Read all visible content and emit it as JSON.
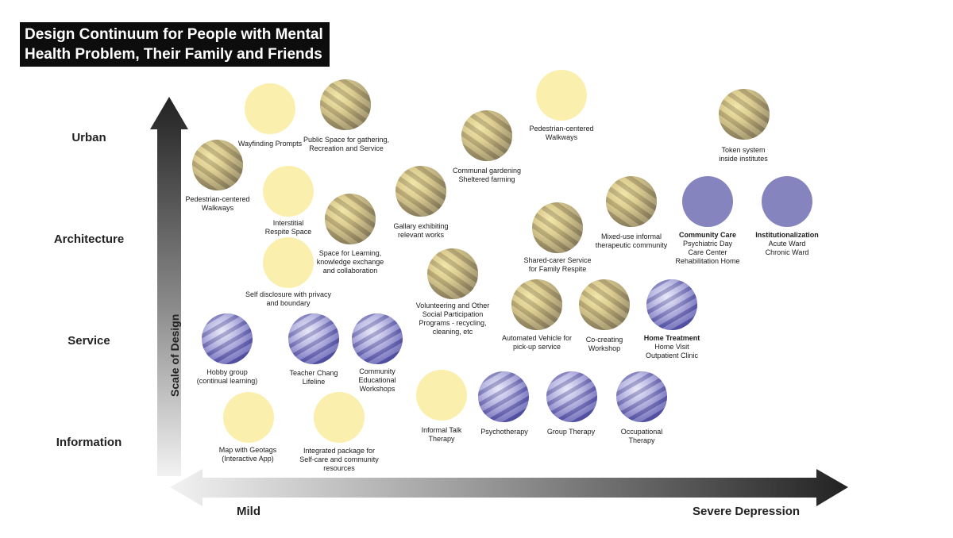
{
  "title": {
    "line1": "Design Continuum for People with Mental",
    "line2": "Health Problem, Their Family and Friends"
  },
  "y_axis": {
    "title": "Scale of Design",
    "levels": [
      "Urban",
      "Architecture",
      "Service",
      "Information"
    ]
  },
  "x_axis": {
    "start": "Mild",
    "end": "Severe Depression"
  },
  "colors": {
    "yellow": "#fbefad",
    "purple": "#8684bf",
    "axis_dark": "#2a2a2a"
  },
  "nodes": [
    {
      "id": "wayfinding",
      "style": "yellow",
      "lines": [
        "Wayfinding Prompts"
      ]
    },
    {
      "id": "public-space",
      "style": "photo-y",
      "lines": [
        "Public Space for gathering,",
        "Recreation and Service"
      ]
    },
    {
      "id": "ped-walk-left",
      "style": "photo-y",
      "lines": [
        "Pedestrian-centered",
        "Walkways"
      ]
    },
    {
      "id": "interstitial",
      "style": "yellow",
      "lines": [
        "Interstitial",
        "Respite Space"
      ]
    },
    {
      "id": "space-learning",
      "style": "photo-y",
      "lines": [
        "Space for Learning,",
        "knowledge exchange",
        "and collaboration"
      ]
    },
    {
      "id": "self-disclosure",
      "style": "yellow",
      "lines": [
        "Self disclosure with privacy",
        "and boundary"
      ]
    },
    {
      "id": "gallery",
      "style": "photo-y",
      "lines": [
        "Gallary exhibiting",
        "relevant works"
      ]
    },
    {
      "id": "communal-garden",
      "style": "photo-y",
      "lines": [
        "Communal gardening",
        "Sheltered farming"
      ]
    },
    {
      "id": "ped-walk-right",
      "style": "yellow",
      "lines": [
        "Pedestrian-centered",
        "Walkways"
      ]
    },
    {
      "id": "token",
      "style": "photo-y",
      "lines": [
        "Token system",
        "inside institutes"
      ]
    },
    {
      "id": "volunteering",
      "style": "photo-y",
      "lines": [
        "Volunteering and Other",
        "Social Participation",
        "Programs - recycling,",
        "cleaning, etc"
      ]
    },
    {
      "id": "shared-carer",
      "style": "photo-y",
      "lines": [
        "Shared-carer Service",
        "for Family Respite"
      ]
    },
    {
      "id": "mixed-use",
      "style": "photo-y",
      "lines": [
        "Mixed-use  informal",
        "therapeutic community"
      ]
    },
    {
      "id": "community-care",
      "style": "purple",
      "bold": "Community Care",
      "lines": [
        "Psychiatric Day",
        "Care Center",
        "Rehabilitation Home"
      ]
    },
    {
      "id": "institutionalization",
      "style": "purple",
      "bold": "Institutionalization",
      "lines": [
        "Acute Ward",
        "Chronic Ward"
      ]
    },
    {
      "id": "automated-vehicle",
      "style": "photo-y",
      "lines": [
        "Automated Vehicle for",
        "pick-up service"
      ]
    },
    {
      "id": "co-creating",
      "style": "photo-y",
      "lines": [
        "Co-creating",
        "Workshop"
      ]
    },
    {
      "id": "home-treatment",
      "style": "photo-p",
      "bold": "Home Treatment",
      "lines": [
        "Home Visit",
        "Outpatient Clinic"
      ]
    },
    {
      "id": "hobby",
      "style": "photo-p",
      "lines": [
        "Hobby group",
        "(continual learning)"
      ]
    },
    {
      "id": "teacher-chang",
      "style": "photo-p",
      "lines": [
        "Teacher Chang",
        "Lifeline"
      ]
    },
    {
      "id": "community-edu",
      "style": "photo-p",
      "lines": [
        "Community",
        "Educational",
        "Workshops"
      ]
    },
    {
      "id": "map-geotags",
      "style": "yellow",
      "lines": [
        "Map with Geotags",
        "(Interactive App)"
      ]
    },
    {
      "id": "integrated-package",
      "style": "yellow",
      "lines": [
        "Integrated package for",
        "Self-care and community",
        "resources"
      ]
    },
    {
      "id": "informal-talk",
      "style": "yellow",
      "lines": [
        "Informal Talk",
        "Therapy"
      ]
    },
    {
      "id": "psychotherapy",
      "style": "photo-p",
      "lines": [
        "Psychotherapy"
      ]
    },
    {
      "id": "group-therapy",
      "style": "photo-p",
      "lines": [
        "Group Therapy"
      ]
    },
    {
      "id": "occupational",
      "style": "photo-p",
      "lines": [
        "Occupational",
        "Therapy"
      ]
    }
  ]
}
